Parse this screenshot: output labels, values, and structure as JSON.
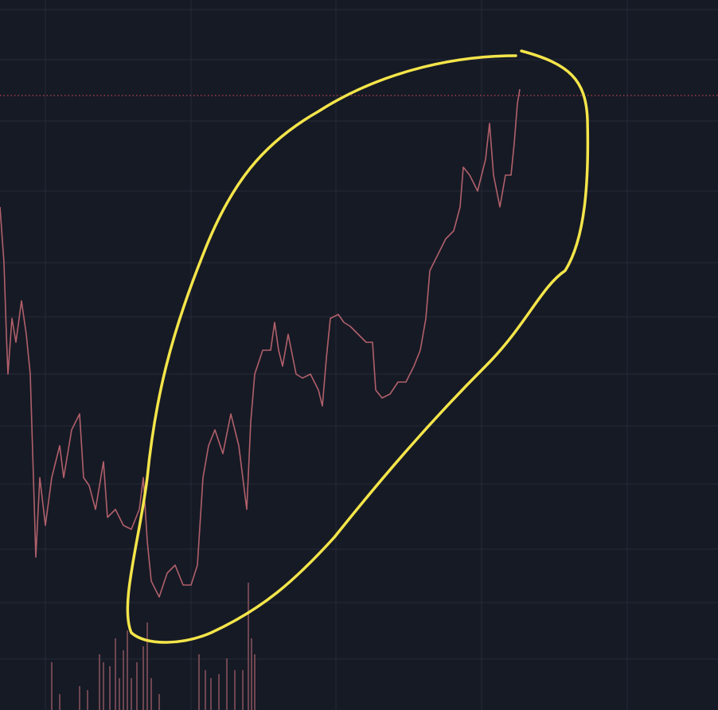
{
  "chart_data": [
    {
      "type": "line",
      "x": [
        0,
        5,
        8,
        10,
        15,
        20,
        27,
        33,
        38,
        42,
        45,
        50,
        57,
        65,
        75,
        80,
        90,
        100,
        105,
        112,
        120,
        130,
        135,
        145,
        155,
        165,
        175,
        180,
        185,
        190,
        200,
        210,
        220,
        230,
        240,
        248,
        255,
        262,
        270,
        280,
        290,
        300,
        305,
        310,
        315,
        320,
        330,
        340,
        345,
        350,
        355,
        362,
        372,
        380,
        390,
        400,
        405,
        410,
        415,
        425,
        432,
        440,
        450,
        460,
        468,
        472,
        480,
        490,
        500,
        510,
        520,
        528,
        535,
        540,
        550,
        560,
        570,
        578,
        582,
        590,
        600,
        610,
        615,
        620,
        628,
        635,
        642,
        646,
        650,
        653
      ],
      "series": [
        {
          "color": "#b0606a",
          "values": [
            632,
            562,
            472,
            422,
            492,
            462,
            514,
            472,
            422,
            292,
            192,
            292,
            232,
            292,
            332,
            292,
            352,
            372,
            292,
            282,
            252,
            312,
            242,
            252,
            232,
            227,
            252,
            292,
            212,
            162,
            142,
            172,
            182,
            157,
            157,
            182,
            292,
            332,
            352,
            322,
            372,
            332,
            292,
            252,
            362,
            422,
            452,
            452,
            487,
            452,
            432,
            472,
            422,
            417,
            422,
            402,
            382,
            442,
            492,
            497,
            487,
            482,
            472,
            462,
            462,
            402,
            392,
            397,
            412,
            412,
            432,
            452,
            492,
            552,
            572,
            592,
            602,
            632,
            682,
            672,
            652,
            692,
            737,
            672,
            632,
            672,
            672,
            712,
            762,
            780
          ]
        }
      ],
      "last_price": 772,
      "last_price_color": "#e04f5f",
      "xlim": [
        0,
        902
      ],
      "ylim": [
        0,
        892
      ],
      "xticks": [
        57,
        240,
        422,
        605,
        788
      ],
      "yticks": [
        880,
        817,
        740,
        652,
        562,
        494,
        422,
        357,
        284,
        202,
        135,
        64
      ],
      "grid": true,
      "grid_color": "#262b38"
    },
    {
      "type": "bar",
      "x": [
        65,
        75,
        100,
        110,
        125,
        130,
        138,
        145,
        150,
        155,
        160,
        165,
        172,
        180,
        185,
        190,
        200,
        250,
        258,
        265,
        275,
        285,
        295,
        305,
        312,
        316,
        320
      ],
      "values": [
        60,
        20,
        30,
        25,
        70,
        60,
        55,
        90,
        40,
        75,
        100,
        40,
        60,
        80,
        110,
        40,
        20,
        70,
        50,
        40,
        45,
        65,
        50,
        50,
        160,
        90,
        70
      ],
      "color": "#6e4650",
      "xlim": [
        0,
        902
      ],
      "ylim": [
        0,
        892
      ]
    }
  ]
}
